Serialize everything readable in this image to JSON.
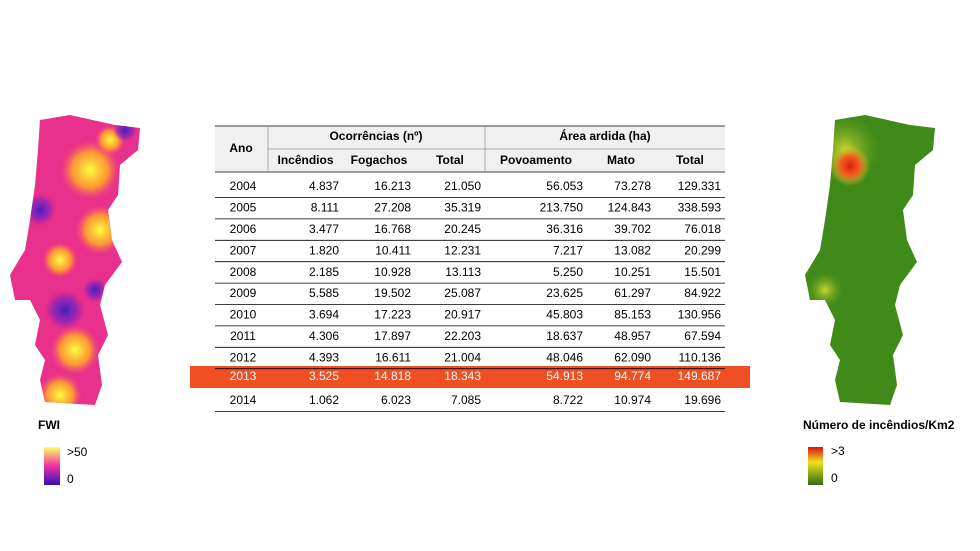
{
  "left_legend": {
    "title": "FWI",
    "high": ">50",
    "low": "0"
  },
  "right_legend": {
    "title": "Número de incêndios/Km2",
    "high": ">3",
    "low": "0"
  },
  "table": {
    "first_header": "Ano",
    "groups": [
      "Ocorrências (nº)",
      "Área ardida (ha)"
    ],
    "columns": [
      "Incêndios",
      "Fogachos",
      "Total",
      "Povoamento",
      "Mato",
      "Total"
    ],
    "rows": [
      [
        "2004",
        "4.837",
        "16.213",
        "21.050",
        "56.053",
        "73.278",
        "129.331"
      ],
      [
        "2005",
        "8.111",
        "27.208",
        "35.319",
        "213.750",
        "124.843",
        "338.593"
      ],
      [
        "2006",
        "3.477",
        "16.768",
        "20.245",
        "36.316",
        "39.702",
        "76.018"
      ],
      [
        "2007",
        "1.820",
        "10.411",
        "12.231",
        "7.217",
        "13.082",
        "20.299"
      ],
      [
        "2008",
        "2.185",
        "10.928",
        "13.113",
        "5.250",
        "10.251",
        "15.501"
      ],
      [
        "2009",
        "5.585",
        "19.502",
        "25.087",
        "23.625",
        "61.297",
        "84.922"
      ],
      [
        "2010",
        "3.694",
        "17.223",
        "20.917",
        "45.803",
        "85.153",
        "130.956"
      ],
      [
        "2011",
        "4.306",
        "17.897",
        "22.203",
        "18.637",
        "48.957",
        "67.594"
      ],
      [
        "2012",
        "4.393",
        "16.611",
        "21.004",
        "48.046",
        "62.090",
        "110.136"
      ],
      [
        "2013",
        "3.525",
        "14.818",
        "18.343",
        "54.913",
        "94.774",
        "149.687"
      ],
      [
        "2014",
        "1.062",
        "6.023",
        "7.085",
        "8.722",
        "10.974",
        "19.696"
      ]
    ]
  }
}
